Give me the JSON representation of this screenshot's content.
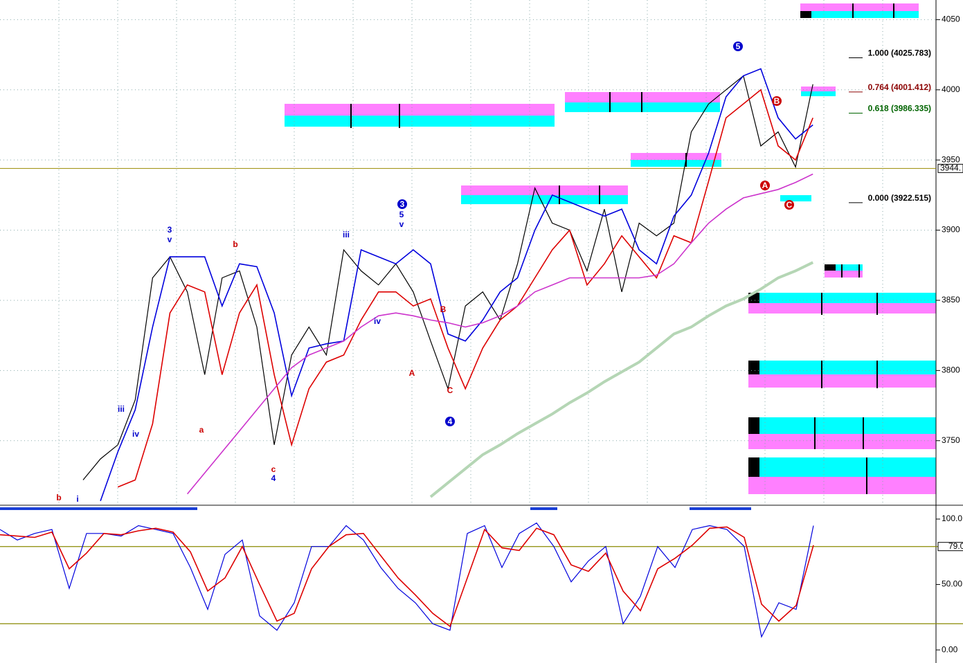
{
  "chart_data": [
    {
      "type": "line",
      "categories": [
        null,
        null,
        null,
        null,
        null,
        null,
        null,
        null,
        null,
        null,
        null,
        null,
        null,
        null,
        null,
        null,
        null,
        null,
        null,
        null,
        null,
        null,
        null,
        null,
        null,
        null,
        null,
        null,
        null,
        null,
        null,
        null,
        null,
        null,
        null,
        null,
        null,
        null,
        null,
        null,
        null,
        null,
        null
      ],
      "series": [
        {
          "color": "#000000",
          "values": [
            3722,
            3737,
            3747,
            3779,
            3866,
            3881,
            3856,
            3797,
            3866,
            3871,
            3831,
            3747,
            3811,
            3831,
            3811,
            3886,
            3871,
            3861,
            3876,
            3856,
            3821,
            3787,
            3846,
            3856,
            3836,
            3876,
            3930,
            3905,
            3900,
            3871,
            3915,
            3856,
            3905,
            3896,
            3905,
            3970,
            3990,
            4000,
            4010,
            3960,
            3970,
            3945,
            4004
          ]
        },
        {
          "color": "#0000dd",
          "values": [
            null,
            3707,
            3742,
            3772,
            3831,
            3881,
            3881,
            3881,
            3846,
            3876,
            3874,
            3841,
            3782,
            3816,
            3819,
            3821,
            3886,
            3881,
            3876,
            3886,
            3876,
            3826,
            3821,
            3836,
            3856,
            3866,
            3900,
            3925,
            3920,
            3915,
            3910,
            3915,
            3886,
            3876,
            3910,
            3925,
            3955,
            3995,
            4010,
            4015,
            3980,
            3965,
            3975
          ]
        },
        {
          "color": "#dd0000",
          "values": [
            null,
            null,
            3717,
            3722,
            3762,
            3841,
            3861,
            3856,
            3797,
            3841,
            3861,
            3797,
            3747,
            3787,
            3806,
            3811,
            3836,
            3856,
            3856,
            3846,
            3851,
            3816,
            3787,
            3816,
            3836,
            3846,
            3866,
            3886,
            3900,
            3861,
            3876,
            3896,
            3881,
            3866,
            3896,
            3891,
            3935,
            3980,
            3990,
            4000,
            3960,
            3950,
            3980
          ]
        },
        {
          "color": "#cc33cc",
          "values": [
            null,
            null,
            null,
            null,
            null,
            null,
            3712,
            3727,
            3742,
            3757,
            3772,
            3787,
            3802,
            3811,
            3816,
            3821,
            3831,
            3839,
            3841,
            3839,
            3836,
            3834,
            3831,
            3834,
            3839,
            3846,
            3856,
            3861,
            3866,
            3866,
            3866,
            3866,
            3866,
            3868,
            3876,
            3891,
            3905,
            3915,
            3923,
            3926,
            3929,
            3934,
            3940
          ]
        },
        {
          "color": "#b5d6b5",
          "values": [
            null,
            null,
            null,
            null,
            null,
            null,
            null,
            null,
            null,
            null,
            null,
            null,
            null,
            null,
            null,
            null,
            null,
            null,
            null,
            null,
            3710,
            3720,
            3730,
            3740,
            3747,
            3755,
            3762,
            3769,
            3777,
            3784,
            3792,
            3799,
            3806,
            3816,
            3826,
            3831,
            3839,
            3846,
            3851,
            3858,
            3866,
            3871,
            3877
          ]
        }
      ],
      "ylim": [
        3705,
        4064
      ],
      "yticks": [
        3750,
        3800,
        3850,
        3900,
        3950,
        4000,
        4050
      ],
      "grid": true,
      "hline": {
        "value": 3944,
        "label": "3944.",
        "color": "#9a8a00"
      },
      "fib_levels": [
        {
          "value": 4025.783,
          "label": "1.000 (4025.783)",
          "color": "#000000"
        },
        {
          "value": 4001.412,
          "label": "0.764 (4001.412)",
          "color": "#8b0000"
        },
        {
          "value": 3986.335,
          "label": "0.618 (3986.335)",
          "color": "#006400"
        },
        {
          "value": 3922.515,
          "label": "0.000 (3922.515)",
          "color": "#000000"
        }
      ],
      "annotations": [
        {
          "text": "3",
          "color": "#0000cc"
        },
        {
          "text": "v",
          "color": "#0000cc"
        },
        {
          "text": "iii",
          "color": "#0000cc"
        },
        {
          "text": "iv",
          "color": "#0000cc"
        },
        {
          "text": "b",
          "color": "#cc0000"
        },
        {
          "text": "a",
          "color": "#cc0000"
        },
        {
          "text": "c",
          "color": "#cc0000"
        },
        {
          "text": "4",
          "color": "#0000cc"
        },
        {
          "text": "3",
          "color": "#0000cc",
          "circled": true
        },
        {
          "text": "5",
          "color": "#0000cc"
        },
        {
          "text": "v",
          "color": "#0000cc"
        },
        {
          "text": "A",
          "color": "#cc0000"
        },
        {
          "text": "B",
          "color": "#cc0000"
        },
        {
          "text": "C",
          "color": "#cc0000"
        },
        {
          "text": "4",
          "color": "#0000cc",
          "circled": true
        },
        {
          "text": "5",
          "color": "#0000cc",
          "circled": true
        },
        {
          "text": "B",
          "color": "#cc0000",
          "circled": true
        },
        {
          "text": "A",
          "color": "#cc0000",
          "circled": true
        },
        {
          "text": "C",
          "color": "#cc0000",
          "circled": true
        },
        {
          "text": "iii",
          "color": "#0000cc"
        },
        {
          "text": "iv",
          "color": "#0000cc"
        },
        {
          "text": "b",
          "color": "#cc0000"
        },
        {
          "text": "i",
          "color": "#0000cc"
        }
      ]
    },
    {
      "type": "line",
      "categories": [
        null,
        null,
        null,
        null,
        null,
        null,
        null,
        null,
        null,
        null,
        null,
        null,
        null,
        null,
        null,
        null,
        null,
        null,
        null,
        null,
        null,
        null,
        null,
        null,
        null,
        null,
        null,
        null,
        null,
        null,
        null,
        null,
        null,
        null,
        null,
        null,
        null,
        null,
        null,
        null,
        null,
        null,
        null,
        null,
        null,
        null,
        null,
        null
      ],
      "series": [
        {
          "color": "#0000dd",
          "values": [
            92,
            84,
            89,
            92,
            47,
            89,
            89,
            87,
            95,
            92,
            89,
            63,
            31,
            73,
            84,
            26,
            15,
            36,
            79,
            79,
            95,
            84,
            63,
            47,
            36,
            20,
            15,
            89,
            95,
            63,
            89,
            97,
            79,
            52,
            68,
            79,
            20,
            41,
            79,
            63,
            92,
            95,
            92,
            79,
            10,
            36,
            31,
            95
          ]
        },
        {
          "color": "#dd0000",
          "values": [
            88,
            87,
            86,
            90,
            62,
            74,
            89,
            88,
            91,
            93,
            90,
            75,
            45,
            55,
            79,
            50,
            22,
            28,
            62,
            79,
            88,
            89,
            72,
            55,
            42,
            28,
            18,
            55,
            92,
            78,
            76,
            93,
            88,
            65,
            60,
            74,
            45,
            30,
            62,
            70,
            80,
            93,
            94,
            86,
            35,
            22,
            34,
            80
          ]
        }
      ],
      "ylim": [
        -10,
        109
      ],
      "yticks": [
        {
          "value": 0,
          "label": "0.00"
        },
        {
          "value": 50,
          "label": "50.00"
        },
        {
          "value": 100,
          "label": "100.0"
        }
      ],
      "hlines": [
        {
          "value": 79,
          "label": "79.0",
          "color": "#8a8a00"
        },
        {
          "value": 20,
          "color": "#8a8a00"
        }
      ]
    }
  ]
}
